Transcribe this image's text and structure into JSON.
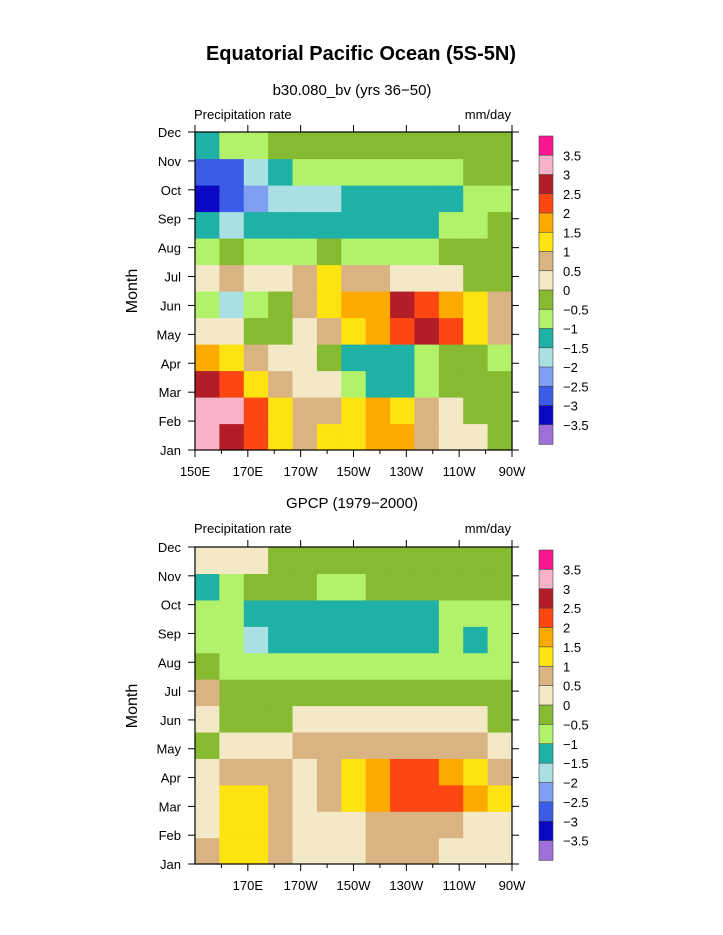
{
  "title": "Equatorial Pacific Ocean (5S-5N)",
  "chart_data": [
    {
      "type": "heatmap",
      "subtitle": "b30.080_bv (yrs 36−50)",
      "left_label": "Precipitation rate",
      "right_label": "mm/day",
      "ylabel": "Month",
      "x_ticks": [
        "150E",
        "170E",
        "170W",
        "150W",
        "130W",
        "110W",
        "90W"
      ],
      "x_values": [
        150,
        170,
        190,
        210,
        230,
        250,
        270
      ],
      "y_ticks": [
        "Jan",
        "Feb",
        "Mar",
        "Apr",
        "May",
        "Jun",
        "Jul",
        "Aug",
        "Sep",
        "Oct",
        "Nov",
        "Dec"
      ],
      "colorbar_labels": [
        "3.5",
        "3",
        "2.5",
        "2",
        "1.5",
        "1",
        "0.5",
        "0",
        "−0.5",
        "−1",
        "−1.5",
        "−2",
        "−2.5",
        "−3",
        "−3.5"
      ],
      "grid": [
        [
          3.2,
          2.8,
          2.0,
          1.2,
          0.8,
          1.0,
          1.3,
          1.8,
          1.5,
          0.8,
          0.3,
          0.0,
          -0.3
        ],
        [
          3.4,
          3.0,
          2.2,
          1.0,
          0.5,
          0.6,
          1.0,
          1.5,
          1.3,
          0.6,
          0.2,
          -0.1,
          -0.3
        ],
        [
          2.8,
          2.4,
          1.4,
          0.6,
          0.4,
          0.0,
          -0.8,
          -1.3,
          -1.1,
          -0.6,
          -0.3,
          -0.4,
          -0.5
        ],
        [
          1.6,
          1.0,
          0.6,
          0.2,
          0.0,
          -0.5,
          -1.2,
          -1.5,
          -1.3,
          -0.8,
          -0.4,
          -0.5,
          -0.6
        ],
        [
          0.3,
          0.0,
          -0.2,
          -0.3,
          0.4,
          0.6,
          1.0,
          1.6,
          2.2,
          2.8,
          2.2,
          1.4,
          0.8
        ],
        [
          -0.8,
          -1.6,
          -0.8,
          -0.3,
          0.6,
          1.3,
          1.8,
          1.6,
          2.6,
          2.2,
          1.5,
          1.0,
          0.5
        ],
        [
          0.3,
          0.6,
          0.2,
          0.4,
          0.8,
          1.0,
          0.9,
          0.6,
          0.3,
          0.2,
          0.0,
          -0.2,
          -0.3
        ],
        [
          -0.6,
          -0.3,
          -0.6,
          -0.8,
          -0.6,
          -0.5,
          -0.6,
          -0.8,
          -0.8,
          -0.6,
          -0.5,
          -0.4,
          -0.3
        ],
        [
          -1.5,
          -1.6,
          -1.4,
          -1.3,
          -1.2,
          -1.2,
          -1.3,
          -1.4,
          -1.3,
          -1.1,
          -1.0,
          -0.9,
          -0.5
        ],
        [
          -3.2,
          -3.0,
          -2.2,
          -1.8,
          -1.8,
          -1.6,
          -1.4,
          -1.2,
          -1.2,
          -1.2,
          -1.1,
          -0.9,
          -0.6
        ],
        [
          -3.0,
          -2.6,
          -1.6,
          -1.2,
          -1.0,
          -0.9,
          -0.9,
          -0.8,
          -0.7,
          -0.7,
          -0.6,
          -0.5,
          -0.4
        ],
        [
          -1.3,
          -1.0,
          -0.7,
          -0.5,
          -0.5,
          -0.5,
          -0.5,
          -0.4,
          -0.3,
          -0.3,
          -0.3,
          -0.3,
          -0.3
        ]
      ]
    },
    {
      "type": "heatmap",
      "subtitle": "GPCP (1979−2000)",
      "left_label": "Precipitation rate",
      "right_label": "mm/day",
      "ylabel": "Month",
      "x_ticks": [
        "170E",
        "170W",
        "150W",
        "130W",
        "110W",
        "90W"
      ],
      "x_values": [
        170,
        190,
        210,
        230,
        250,
        270
      ],
      "y_ticks": [
        "Jan",
        "Feb",
        "Mar",
        "Apr",
        "May",
        "Jun",
        "Jul",
        "Aug",
        "Sep",
        "Oct",
        "Nov",
        "Dec"
      ],
      "colorbar_labels": [
        "3.5",
        "3",
        "2.5",
        "2",
        "1.5",
        "1",
        "0.5",
        "0",
        "−0.5",
        "−1",
        "−1.5",
        "−2",
        "−2.5",
        "−3",
        "−3.5"
      ],
      "grid": [
        [
          0.6,
          1.2,
          1.2,
          0.8,
          0.3,
          0.2,
          0.4,
          0.5,
          0.6,
          0.5,
          0.4,
          0.3,
          0.2
        ],
        [
          0.3,
          1.2,
          1.3,
          0.8,
          0.4,
          0.3,
          0.4,
          0.6,
          0.7,
          0.6,
          0.5,
          0.4,
          0.3
        ],
        [
          0.2,
          1.0,
          1.4,
          0.7,
          0.4,
          0.8,
          1.4,
          1.8,
          2.3,
          2.2,
          2.4,
          1.8,
          1.0
        ],
        [
          0.0,
          0.6,
          0.8,
          0.6,
          0.4,
          0.8,
          1.4,
          1.8,
          2.4,
          2.2,
          1.8,
          1.2,
          0.6
        ],
        [
          -0.3,
          0.0,
          0.2,
          0.4,
          0.5,
          0.6,
          0.8,
          0.8,
          0.8,
          0.7,
          0.6,
          0.5,
          0.3
        ],
        [
          0.4,
          -0.3,
          -0.4,
          -0.3,
          0.0,
          0.2,
          0.3,
          0.3,
          0.3,
          0.2,
          0.1,
          0.0,
          -0.1
        ],
        [
          0.5,
          -0.4,
          -0.5,
          -0.5,
          -0.4,
          -0.3,
          -0.3,
          -0.3,
          -0.3,
          -0.3,
          -0.3,
          -0.3,
          -0.3
        ],
        [
          -0.2,
          -0.6,
          -0.7,
          -0.8,
          -0.9,
          -0.9,
          -0.9,
          -0.9,
          -0.9,
          -0.8,
          -0.7,
          -0.8,
          -0.8
        ],
        [
          -1.0,
          -1.0,
          -1.8,
          -1.4,
          -1.2,
          -1.3,
          -1.3,
          -1.3,
          -1.2,
          -1.2,
          -0.8,
          -1.1,
          -1.0
        ],
        [
          -0.8,
          -0.8,
          -1.1,
          -1.2,
          -1.2,
          -1.1,
          -1.2,
          -1.3,
          -1.2,
          -1.1,
          -0.7,
          -1.0,
          -1.0
        ],
        [
          -1.1,
          -0.6,
          -0.5,
          -0.5,
          -0.5,
          -0.6,
          -0.6,
          -0.5,
          -0.5,
          -0.5,
          -0.5,
          -0.5,
          -0.5
        ],
        [
          0.1,
          0.3,
          0.2,
          -0.2,
          -0.3,
          -0.3,
          -0.4,
          -0.4,
          -0.4,
          -0.4,
          -0.4,
          -0.4,
          -0.4
        ]
      ]
    }
  ],
  "colors": {
    "levels": [
      -3.5,
      -3,
      -2.5,
      -2,
      -1.5,
      -1,
      -0.5,
      0,
      0.5,
      1,
      1.5,
      2,
      2.5,
      3,
      3.5
    ],
    "palette": [
      "#9e6fd8",
      "#0a08c4",
      "#3a5ce6",
      "#7f9ff0",
      "#aadfe4",
      "#1fb1a5",
      "#b2f26a",
      "#86ba30",
      "#f3e9c6",
      "#d9b482",
      "#fde310",
      "#fdaa00",
      "#fc4712",
      "#b21d28",
      "#f8b3c8",
      "#fb1590"
    ]
  }
}
